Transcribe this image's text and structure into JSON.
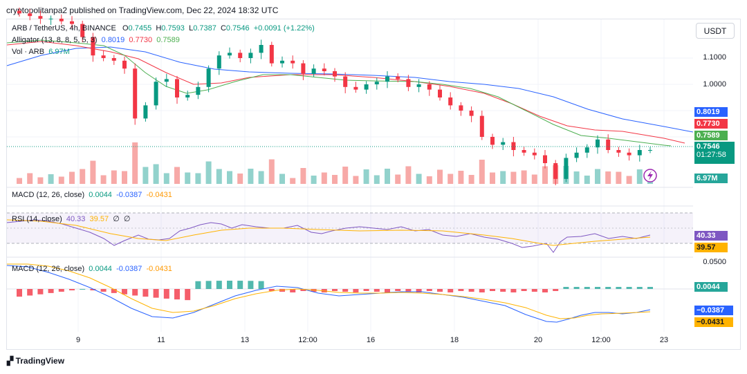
{
  "header": {
    "publisher_text": "cryptopolitanpa2 published on TradingView.com, Dec 22, 2024 18:32 UTC"
  },
  "symbol": {
    "name": "ARB / TetherUS, 4h, BINANCE",
    "open_label": "O",
    "open": "0.7455",
    "high_label": "H",
    "high": "0.7593",
    "low_label": "L",
    "low": "0.7387",
    "close_label": "C",
    "close": "0.7546",
    "change": "+0.0091 (+1.22%)"
  },
  "indicators": {
    "alligator": {
      "label": "Alligator (13, 8, 8, 5, 5, 3)",
      "jaw": "0.8019",
      "teeth": "0.7730",
      "lips": "0.7589"
    },
    "volume": {
      "label": "Vol · ARB",
      "value": "6.97M"
    },
    "macd_top": {
      "label": "MACD (12, 26, close)",
      "hist": "0.0044",
      "macd": "-0.0387",
      "signal": "-0.0431"
    },
    "rsi": {
      "label": "RSI (14, close)",
      "rsi": "40.33",
      "ma": "39.57",
      "d1": "∅",
      "d2": "∅"
    },
    "macd": {
      "label": "MACD (12, 26, close)",
      "hist": "0.0044",
      "macd": "-0.0387",
      "signal": "-0.0431"
    }
  },
  "currency_button": "USDT",
  "price_axis": {
    "l1": "1.1000",
    "l2": "1.0000",
    "macd_top": "0.0500"
  },
  "price_tags": {
    "jaw": "0.8019",
    "teeth": "0.7730",
    "lips": "0.7589",
    "last": "0.7546",
    "countdown": "01:27:58",
    "volume": "6.97M",
    "rsi": "40.33",
    "rsi_ma": "39.57",
    "macd_hist": "0.0044",
    "macd": "−0.0387",
    "signal": "−0.0431"
  },
  "time_axis": [
    "9",
    "11",
    "13",
    "12:00",
    "16",
    "18",
    "20",
    "12:00",
    "23"
  ],
  "footer": {
    "brand": "TradingView"
  },
  "colors": {
    "up": "#089981",
    "down": "#f23645",
    "jaw": "#2962ff",
    "teeth": "#f23645",
    "lips": "#4caf50",
    "rsi": "#7e57c2",
    "signal": "#ffb300"
  },
  "chart_data": {
    "type": "candlestick",
    "candles_approx_close": [
      1.27,
      1.26,
      1.25,
      1.25,
      1.24,
      1.23,
      1.18,
      1.11,
      1.1,
      1.09,
      1.06,
      0.87,
      0.92,
      1.01,
      1.02,
      0.95,
      0.96,
      0.99,
      1.06,
      1.11,
      1.12,
      1.1,
      1.12,
      1.15,
      1.08,
      1.09,
      1.08,
      1.04,
      1.06,
      1.05,
      1.03,
      0.99,
      0.98,
      1.0,
      1.01,
      1.03,
      1.02,
      0.99,
      1.0,
      0.98,
      0.95,
      0.92,
      0.9,
      0.88,
      0.8,
      0.77,
      0.78,
      0.75,
      0.74,
      0.73,
      0.7,
      0.64,
      0.72,
      0.74,
      0.76,
      0.79,
      0.75,
      0.74,
      0.73,
      0.75,
      0.75
    ],
    "alligator": {
      "jaw": 0.8019,
      "teeth": 0.773,
      "lips": 0.7589
    },
    "volume_last": "6.97M",
    "rsi_last": 40.33,
    "rsi_ma_last": 39.57,
    "macd_last": -0.0387,
    "signal_last": -0.0431,
    "hist_last": 0.0044
  }
}
